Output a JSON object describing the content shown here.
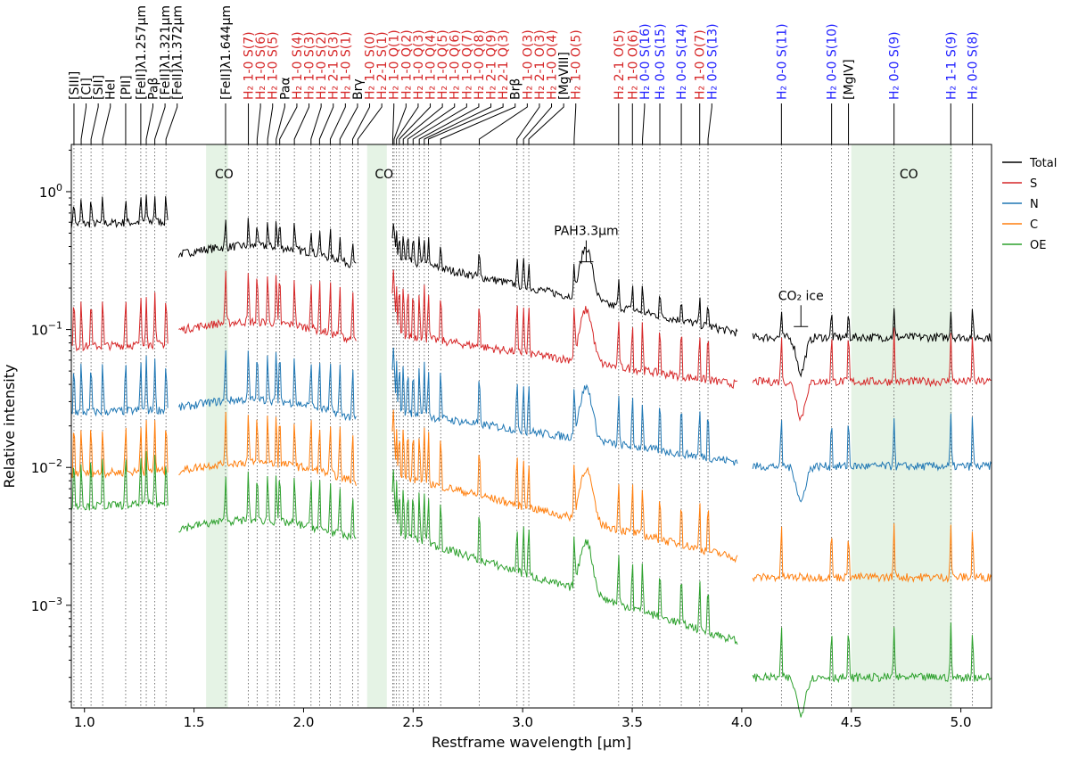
{
  "chart_data": {
    "type": "line",
    "xlabel": "Restframe wavelength [μm]",
    "ylabel": "Relative intensity",
    "xlim": [
      0.94,
      5.14
    ],
    "ylim": [
      0.00018,
      2.2
    ],
    "yscale": "log",
    "xticks": [
      {
        "v": 1.0,
        "label": "1.0"
      },
      {
        "v": 1.5,
        "label": "1.5"
      },
      {
        "v": 2.0,
        "label": "2.0"
      },
      {
        "v": 2.5,
        "label": "2.5"
      },
      {
        "v": 3.0,
        "label": "3.0"
      },
      {
        "v": 3.5,
        "label": "3.5"
      },
      {
        "v": 4.0,
        "label": "4.0"
      },
      {
        "v": 4.5,
        "label": "4.5"
      },
      {
        "v": 5.0,
        "label": "5.0"
      }
    ],
    "yticks": [
      {
        "v": 1,
        "base": "10",
        "exp": "0"
      },
      {
        "v": 0.1,
        "base": "10",
        "exp": "−1"
      },
      {
        "v": 0.01,
        "base": "10",
        "exp": "−2"
      },
      {
        "v": 0.001,
        "base": "10",
        "exp": "−3"
      }
    ],
    "legend": {
      "position": "outside-right"
    },
    "series": [
      {
        "name": "Total",
        "color": "#000000",
        "level": 0.58,
        "lev2": 0.39,
        "lev3": 0.095,
        "lev4": 0.088
      },
      {
        "name": "S",
        "color": "#d62728",
        "level": 0.075,
        "lev2": 0.11,
        "lev3": 0.04,
        "lev4": 0.042
      },
      {
        "name": "N",
        "color": "#1f77b4",
        "level": 0.025,
        "lev2": 0.03,
        "lev3": 0.011,
        "lev4": 0.0102
      },
      {
        "name": "C",
        "color": "#ff7f0e",
        "level": 0.009,
        "lev2": 0.0105,
        "lev3": 0.0022,
        "lev4": 0.0016
      },
      {
        "name": "OE",
        "color": "#2ca02c",
        "level": 0.0052,
        "lev2": 0.004,
        "lev3": 0.00055,
        "lev4": 0.0003
      }
    ],
    "shaded_regions": [
      {
        "x0": 1.555,
        "x1": 1.655,
        "label": "CO"
      },
      {
        "x0": 2.29,
        "x1": 2.38,
        "label": "CO"
      },
      {
        "x0": 4.5,
        "x1": 4.96,
        "label": "CO"
      }
    ],
    "annotations": [
      {
        "x": 3.29,
        "label": "PAH3.3μm",
        "y": 0.31
      },
      {
        "x": 4.27,
        "label": "CO₂ ice",
        "y": 0.105
      }
    ],
    "lines": [
      {
        "x": 0.952,
        "label": "[SIII]",
        "color": "#000000"
      },
      {
        "x": 0.985,
        "label": "[CI]",
        "color": "#000000"
      },
      {
        "x": 1.03,
        "label": "[SII]",
        "color": "#000000"
      },
      {
        "x": 1.083,
        "label": "HeI",
        "color": "#000000"
      },
      {
        "x": 1.188,
        "label": "[PII]",
        "color": "#000000"
      },
      {
        "x": 1.257,
        "label": "[FeII]λ1.257μm",
        "color": "#000000"
      },
      {
        "x": 1.282,
        "label": "Paβ",
        "color": "#000000"
      },
      {
        "x": 1.321,
        "label": "[FeII]λ1.321μm",
        "color": "#000000"
      },
      {
        "x": 1.372,
        "label": "[FeII]λ1.372μm",
        "color": "#000000"
      },
      {
        "x": 1.644,
        "label": "[FeII]λ1.644μm",
        "color": "#000000"
      },
      {
        "x": 1.748,
        "label": "H₂ 1-0 S(7)",
        "color": "#d62728"
      },
      {
        "x": 1.788,
        "label": "H₂ 1-0 S(6)",
        "color": "#d62728"
      },
      {
        "x": 1.836,
        "label": "H₂ 1-0 S(5)",
        "color": "#d62728"
      },
      {
        "x": 1.875,
        "label": "Paα",
        "color": "#000000"
      },
      {
        "x": 1.891,
        "label": "H₂ 1-0 S(4)",
        "color": "#d62728"
      },
      {
        "x": 1.958,
        "label": "H₂ 1-0 S(3)",
        "color": "#d62728"
      },
      {
        "x": 2.034,
        "label": "H₂ 1-0 S(2)",
        "color": "#d62728"
      },
      {
        "x": 2.073,
        "label": "H₂ 2-1 S(3)",
        "color": "#d62728"
      },
      {
        "x": 2.122,
        "label": "H₂ 1-0 S(1)",
        "color": "#d62728"
      },
      {
        "x": 2.166,
        "label": "Brγ",
        "color": "#000000"
      },
      {
        "x": 2.224,
        "label": "H₂ 1-0 S(0)",
        "color": "#d62728"
      },
      {
        "x": 2.248,
        "label": "H₂ 2-1 S(1)",
        "color": "#d62728"
      },
      {
        "x": 2.407,
        "label": "H₂ 1-0 Q(1)",
        "color": "#d62728"
      },
      {
        "x": 2.413,
        "label": "H₂ 1-0 Q(2)",
        "color": "#d62728"
      },
      {
        "x": 2.424,
        "label": "H₂ 1-0 Q(3)",
        "color": "#d62728"
      },
      {
        "x": 2.437,
        "label": "H₂ 1-0 Q(4)",
        "color": "#d62728"
      },
      {
        "x": 2.455,
        "label": "H₂ 1-0 Q(5)",
        "color": "#d62728"
      },
      {
        "x": 2.476,
        "label": "H₂ 1-0 Q(6)",
        "color": "#d62728"
      },
      {
        "x": 2.5,
        "label": "H₂ 1-0 Q(7)",
        "color": "#d62728"
      },
      {
        "x": 2.528,
        "label": "H₂ 1-0 Q(8)",
        "color": "#d62728"
      },
      {
        "x": 2.551,
        "label": "H₂ 2-1 Q(9)",
        "color": "#d62728"
      },
      {
        "x": 2.57,
        "label": "H₂ 2-1 Q(3)",
        "color": "#d62728"
      },
      {
        "x": 2.626,
        "label": "Brβ",
        "color": "#000000"
      },
      {
        "x": 2.802,
        "label": "H₂ 1-0 O(3)",
        "color": "#d62728"
      },
      {
        "x": 2.974,
        "label": "H₂ 2-1 O(3)",
        "color": "#d62728"
      },
      {
        "x": 3.004,
        "label": "H₂ 1-0 O(4)",
        "color": "#d62728"
      },
      {
        "x": 3.028,
        "label": "[MgVIII]",
        "color": "#000000"
      },
      {
        "x": 3.235,
        "label": "H₂ 1-0 O(5)",
        "color": "#d62728"
      },
      {
        "x": 3.438,
        "label": "H₂ 2-1 O(5)",
        "color": "#d62728"
      },
      {
        "x": 3.501,
        "label": "H₂ 1-0 O(6)",
        "color": "#d62728"
      },
      {
        "x": 3.547,
        "label": "H₂ 0-0 S(16)",
        "color": "#1f1fff"
      },
      {
        "x": 3.626,
        "label": "H₂ 0-0 S(15)",
        "color": "#1f1fff"
      },
      {
        "x": 3.724,
        "label": "H₂ 0-0 S(14)",
        "color": "#1f1fff"
      },
      {
        "x": 3.808,
        "label": "H₂ 1-0 O(7)",
        "color": "#d62728"
      },
      {
        "x": 3.846,
        "label": "H₂ 0-0 S(13)",
        "color": "#1f1fff"
      },
      {
        "x": 4.181,
        "label": "H₂ 0-0 S(11)",
        "color": "#1f1fff"
      },
      {
        "x": 4.41,
        "label": "H₂ 0-0 S(10)",
        "color": "#1f1fff"
      },
      {
        "x": 4.487,
        "label": "[MgIV]",
        "color": "#000000"
      },
      {
        "x": 4.695,
        "label": "H₂ 0-0 S(9)",
        "color": "#1f1fff"
      },
      {
        "x": 4.954,
        "label": "H₂ 1-1 S(9)",
        "color": "#1f1fff"
      },
      {
        "x": 5.053,
        "label": "H₂ 0-0 S(8)",
        "color": "#1f1fff"
      }
    ]
  }
}
